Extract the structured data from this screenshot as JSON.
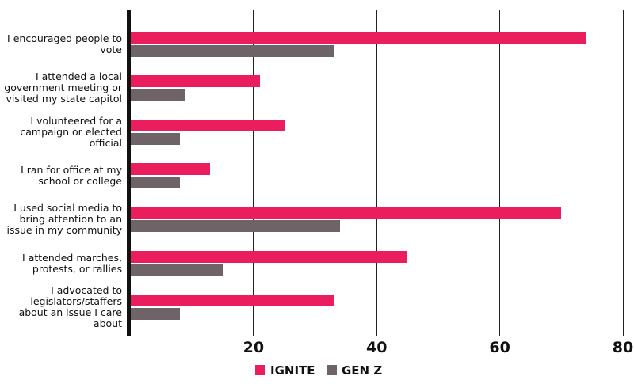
{
  "chart_data": {
    "type": "bar",
    "orientation": "horizontal",
    "categories": [
      "I encouraged people to vote",
      "I attended a local government meeting or visited my state capitol",
      "I volunteered for a campaign or elected official",
      "I ran for office at my school or college",
      "I used social media to bring attention to an issue in my community",
      "I attended marches, protests, or rallies",
      "I advocated to legislators/staffers about an issue I care about"
    ],
    "series": [
      {
        "name": "IGNITE",
        "color": "#ea1d5d",
        "values": [
          74,
          21,
          25,
          13,
          70,
          45,
          33
        ]
      },
      {
        "name": "GEN Z",
        "color": "#6e6366",
        "values": [
          33,
          9,
          8,
          8,
          34,
          15,
          8
        ]
      }
    ],
    "xlim": [
      0,
      80
    ],
    "xticks": [
      20,
      40,
      60,
      80
    ],
    "grid": true,
    "legend": "bottom"
  }
}
